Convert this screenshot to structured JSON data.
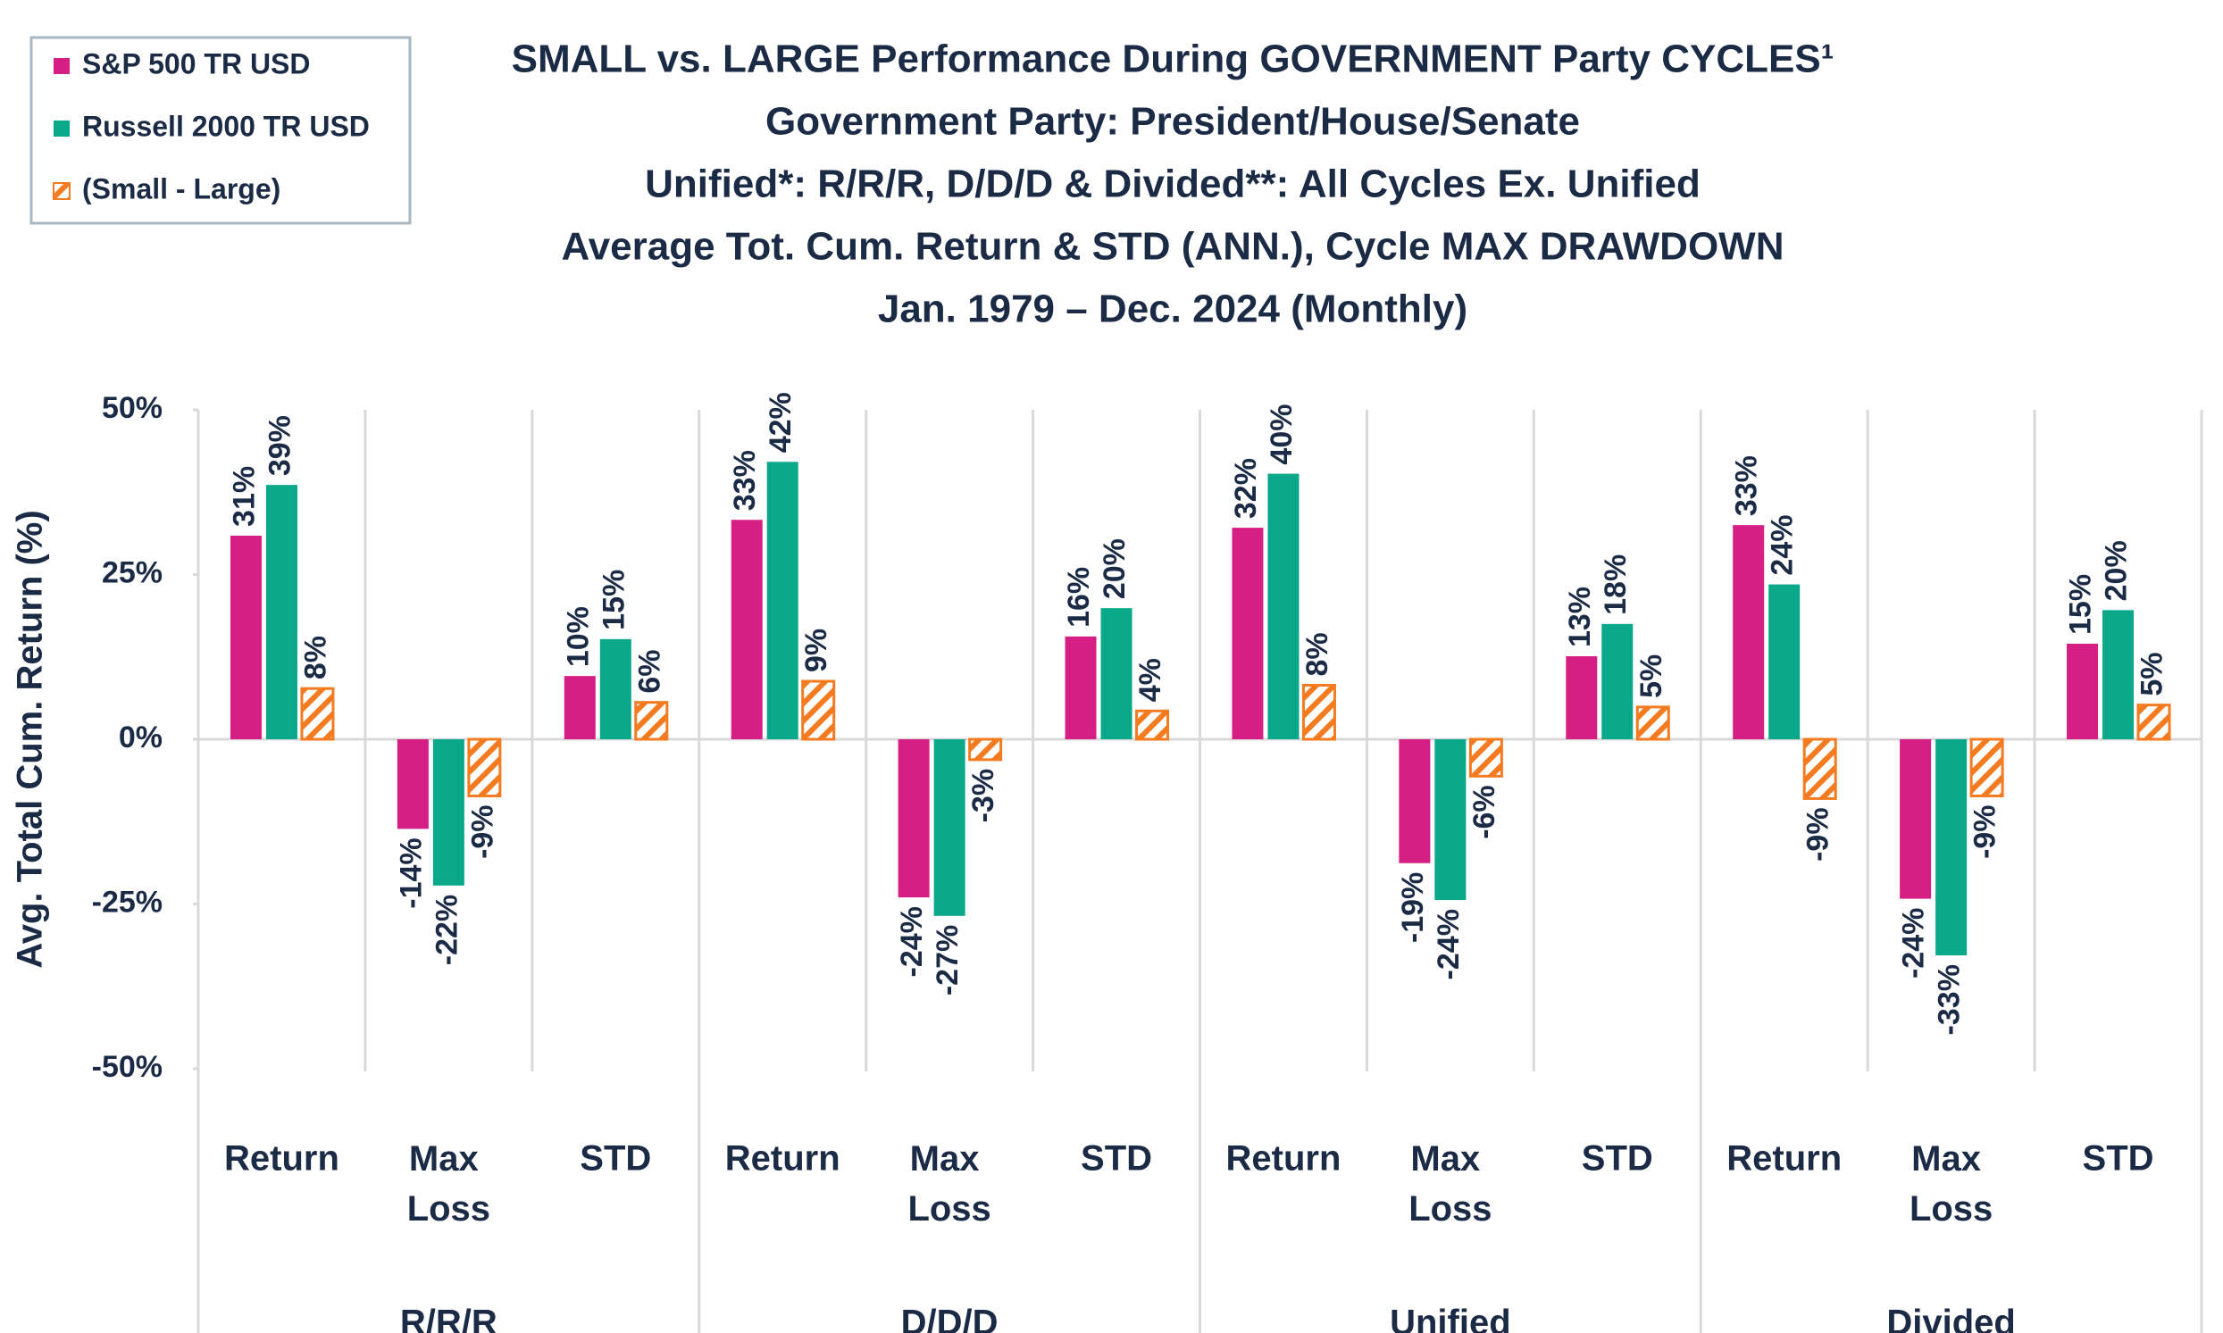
{
  "chart_data": {
    "type": "bar",
    "title_lines": [
      "SMALL vs. LARGE Performance During GOVERNMENT Party CYCLES¹",
      "Government Party: President/House/Senate",
      "Unified*: R/R/R, D/D/D & Divided**: All Cycles Ex. Unified",
      "Average Tot. Cum. Return & STD (ANN.), Cycle MAX DRAWDOWN",
      "Jan. 1979 – Dec. 2024 (Monthly)"
    ],
    "y_label": "Avg. Total Cum. Return (%)",
    "categories": [
      "Return",
      "Max Loss",
      "STD",
      "Return",
      "Max Loss",
      "STD",
      "Return",
      "Max Loss",
      "STD",
      "Return",
      "Max Loss",
      "STD"
    ],
    "groups": [
      "R/R/R",
      "D/D/D",
      "Unified",
      "Divided"
    ],
    "series": [
      {
        "name": "S&P 500 TR USD",
        "color": "#d61f84",
        "hatch": false,
        "values": [
          30.9,
          -13.6,
          9.6,
          33.3,
          -24,
          15.6,
          32.1,
          -18.8,
          12.6,
          32.5,
          -24.2,
          14.5
        ],
        "value_labels": [
          "31%",
          "-14%",
          "10%",
          "33%",
          "-24%",
          "16%",
          "32%",
          "-19%",
          "13%",
          "33%",
          "-24%",
          "15%"
        ]
      },
      {
        "name": "Russell 2000 TR USD",
        "color": "#0aa88a",
        "hatch": false,
        "values": [
          38.6,
          -22.2,
          15.2,
          42.1,
          -26.8,
          19.9,
          40.3,
          -24.4,
          17.5,
          23.5,
          -32.8,
          19.6
        ],
        "value_labels": [
          "39%",
          "-22%",
          "15%",
          "42%",
          "-27%",
          "20%",
          "40%",
          "-24%",
          "18%",
          "24%",
          "-33%",
          "20%"
        ]
      },
      {
        "name": "(Small - Large)",
        "color": "#f47b20",
        "hatch": true,
        "values": [
          7.7,
          -8.6,
          5.6,
          8.8,
          -3.1,
          4.3,
          8.2,
          -5.6,
          4.9,
          -9,
          -8.6,
          5.2
        ],
        "value_labels": [
          "8%",
          "-9%",
          "6%",
          "9%",
          "-3%",
          "4%",
          "8%",
          "-6%",
          "5%",
          "-9%",
          "-9%",
          "5%"
        ]
      }
    ],
    "ylim": [
      -50,
      50
    ],
    "yticks": [
      {
        "value": -50,
        "label": "-50%"
      },
      {
        "value": -25,
        "label": "-25%"
      },
      {
        "value": 0,
        "label": "0%"
      },
      {
        "value": 25,
        "label": "25%"
      },
      {
        "value": 50,
        "label": "50%"
      }
    ],
    "legend": "top-left"
  }
}
